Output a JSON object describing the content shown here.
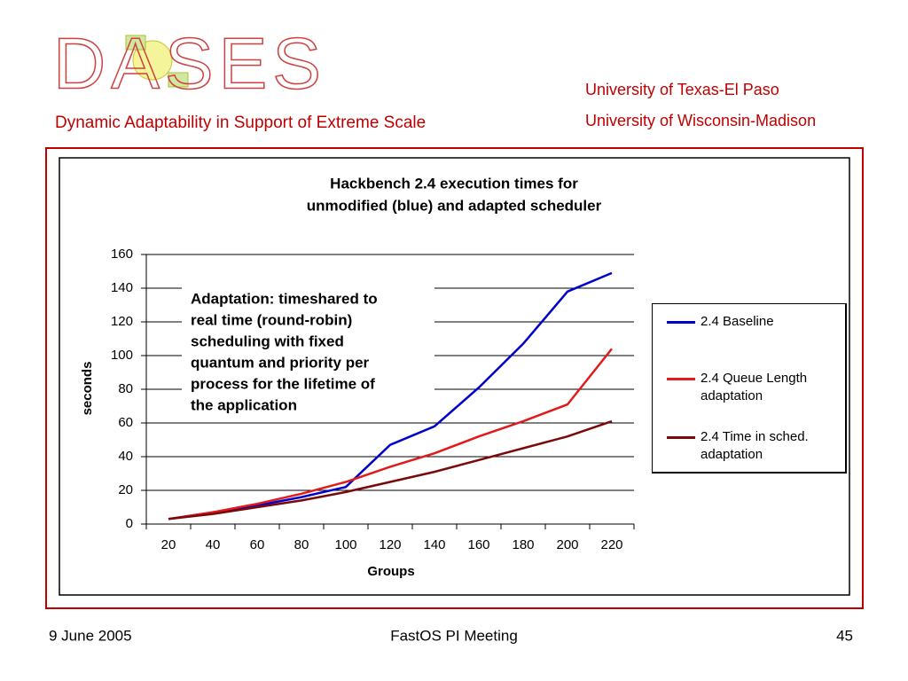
{
  "header": {
    "logo": "DASES",
    "subtitle": "Dynamic Adaptability in Support of Extreme Scale",
    "affiliations": [
      "University of Texas-El Paso",
      "University of Wisconsin-Madison"
    ]
  },
  "chart_data": {
    "type": "line",
    "title": [
      "Hackbench 2.4 execution times for",
      "unmodified (blue) and adapted scheduler"
    ],
    "x_label": "Groups",
    "y_label": "seconds",
    "categories": [
      20,
      40,
      60,
      80,
      100,
      120,
      140,
      160,
      180,
      200,
      220
    ],
    "series": [
      {
        "name": "2.4 Baseline",
        "color": "#0000cc",
        "values": [
          3,
          7,
          11,
          16,
          22,
          47,
          58,
          81,
          107,
          138,
          149
        ]
      },
      {
        "name": "2.4 Queue Length adaptation",
        "color": "#e21a1a",
        "values": [
          3,
          7,
          12,
          18,
          25,
          34,
          42,
          52,
          61,
          71,
          104
        ]
      },
      {
        "name": "2.4 Time in sched. adaptation",
        "color": "#7a0a0a",
        "values": [
          3,
          6,
          10,
          14,
          19,
          25,
          31,
          38,
          45,
          52,
          61
        ]
      }
    ],
    "ylim": [
      0,
      160
    ],
    "yticks": [
      0,
      20,
      40,
      60,
      80,
      100,
      120,
      140,
      160
    ],
    "grid": true,
    "legend": "right",
    "annotation": [
      "Adaptation: timeshared to",
      "real time (round-robin)",
      "scheduling with fixed",
      "quantum and priority per",
      "process for the lifetime of",
      "the application"
    ]
  },
  "footer": {
    "date": "9 June 2005",
    "event": "FastOS PI Meeting",
    "page": "45"
  }
}
